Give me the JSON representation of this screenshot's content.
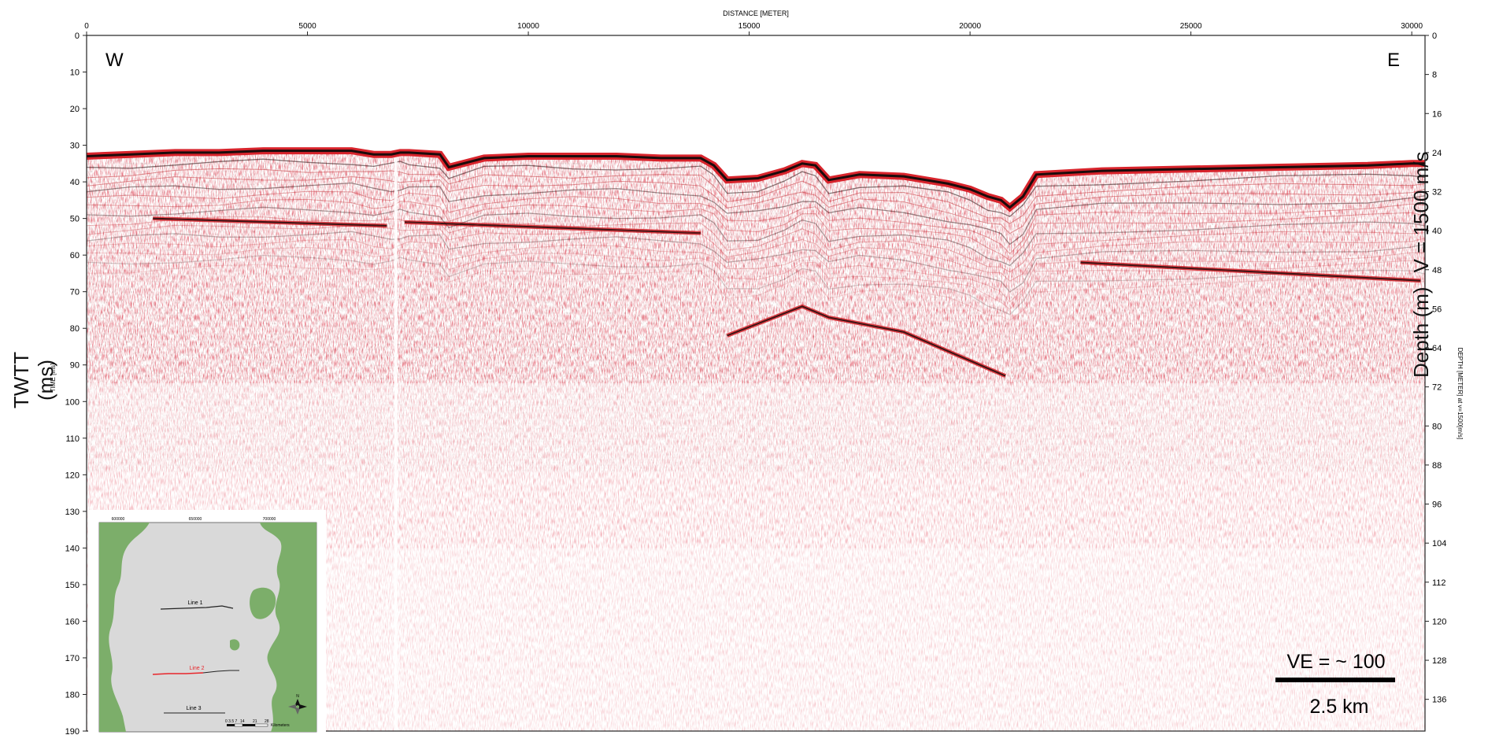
{
  "title": "DISTANCE [METER]",
  "left_axis_title": "TIME [ms]",
  "right_axis_title": "DEPTH [METER] at v=1500[m/s]",
  "left_outer_label": "TWTT (ms)",
  "right_outer_label_depth": "Depth (m)",
  "right_outer_label_velocity": "V = 1500 m/s",
  "direction_left": "W",
  "direction_right": "E",
  "vertical_exaggeration": "VE = ~ 100",
  "scale_bar_label": "2.5 km",
  "x_ticks": [
    "0",
    "5000",
    "10000",
    "15000",
    "20000",
    "25000",
    "30000"
  ],
  "time_ticks": [
    "0",
    "10",
    "20",
    "30",
    "40",
    "50",
    "60",
    "70",
    "80",
    "90",
    "100",
    "110",
    "120",
    "130",
    "140",
    "150",
    "160",
    "170",
    "180",
    "190"
  ],
  "depth_ticks": [
    "0",
    "8",
    "16",
    "24",
    "32",
    "40",
    "48",
    "56",
    "64",
    "72",
    "80",
    "88",
    "96",
    "104",
    "112",
    "120",
    "128",
    "136"
  ],
  "inset": {
    "line1": "Line 1",
    "line2": "Line 2",
    "line3": "Line 3",
    "north": "N",
    "top_ticks": [
      "600000",
      "650000",
      "700000"
    ],
    "scale_ticks": [
      "0 3.5 7",
      "14",
      "21",
      "28"
    ],
    "scale_unit": "Kilometers"
  },
  "colors": {
    "seafloor_red": "#d8242c",
    "reflector_dark": "#2a1010",
    "land_green": "#7cae6a",
    "water_grey": "#d9d9d9",
    "inset_line2": "#e8262b"
  },
  "seafloor_profile": {
    "distance_m": [
      0,
      1000,
      2000,
      3000,
      4000,
      5000,
      6000,
      6500,
      6900,
      7100,
      7300,
      8000,
      8200,
      9000,
      10000,
      11000,
      12000,
      13000,
      13900,
      14200,
      14500,
      15200,
      15800,
      16200,
      16500,
      16800,
      17500,
      18500,
      19500,
      20000,
      20400,
      20700,
      20900,
      21200,
      21500,
      23000,
      25000,
      27000,
      29000,
      30000,
      30300
    ],
    "twtt_ms": [
      33,
      32.5,
      32,
      32,
      31.5,
      31.5,
      31.5,
      32.5,
      32.5,
      32,
      32,
      32.5,
      36,
      33.5,
      33,
      33,
      33,
      33.5,
      33.5,
      35.5,
      39.5,
      39,
      37,
      35,
      35.5,
      39.5,
      38,
      38.5,
      40.5,
      42,
      44,
      45,
      47,
      44,
      38,
      37,
      36.5,
      36,
      35.5,
      35,
      35
    ]
  },
  "reflectors": [
    {
      "distance_m": [
        1500,
        6800
      ],
      "twtt_ms": [
        50,
        52
      ]
    },
    {
      "distance_m": [
        7200,
        13900
      ],
      "twtt_ms": [
        51,
        54
      ]
    },
    {
      "distance_m": [
        14500,
        16200,
        16800,
        18500,
        20800
      ],
      "twtt_ms": [
        82,
        74,
        77,
        81,
        93
      ]
    },
    {
      "distance_m": [
        22500,
        30200
      ],
      "twtt_ms": [
        62,
        67
      ]
    }
  ]
}
